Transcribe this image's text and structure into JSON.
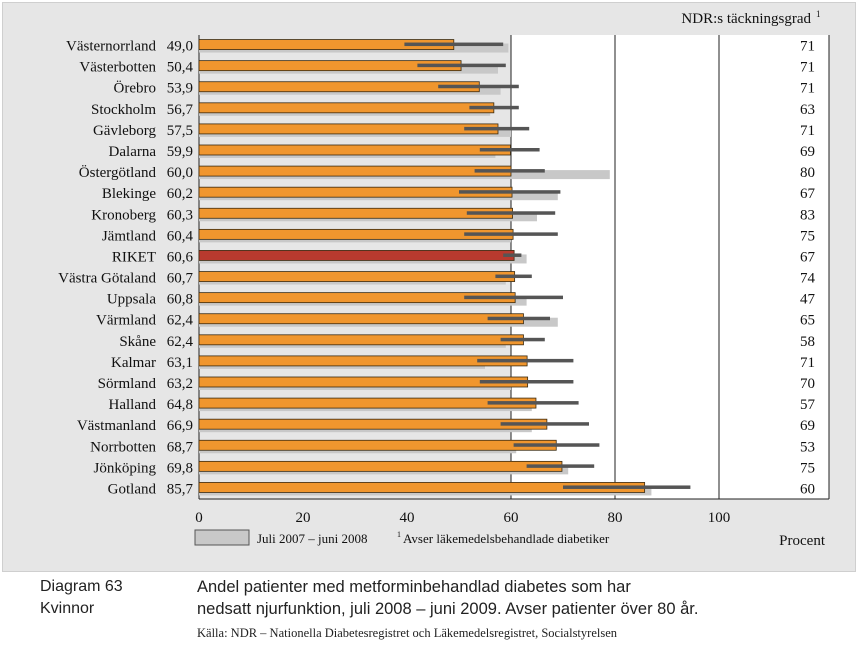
{
  "chart_data": {
    "type": "bar",
    "orientation": "horizontal",
    "title": "NDR:s täckningsgrad",
    "title_footnote": "1",
    "categories": [
      "Västernorrland",
      "Västerbotten",
      "Örebro",
      "Stockholm",
      "Gävleborg",
      "Dalarna",
      "Östergötland",
      "Blekinge",
      "Kronoberg",
      "Jämtland",
      "RIKET",
      "Västra Götaland",
      "Uppsala",
      "Värmland",
      "Skåne",
      "Kalmar",
      "Sörmland",
      "Halland",
      "Västmanland",
      "Norrbotten",
      "Jönköping",
      "Gotland"
    ],
    "value_labels": [
      "49,0",
      "50,4",
      "53,9",
      "56,7",
      "57,5",
      "59,9",
      "60,0",
      "60,2",
      "60,3",
      "60,4",
      "60,6",
      "60,7",
      "60,8",
      "62,4",
      "62,4",
      "63,1",
      "63,2",
      "64,8",
      "66,9",
      "68,7",
      "69,8",
      "85,7"
    ],
    "series": [
      {
        "name": "Juli 2008 – juni 2009",
        "color": "#f0962e",
        "values": [
          49.0,
          50.4,
          53.9,
          56.7,
          57.5,
          59.9,
          60.0,
          60.2,
          60.3,
          60.4,
          60.6,
          60.7,
          60.8,
          62.4,
          62.4,
          63.1,
          63.2,
          64.8,
          66.9,
          68.7,
          69.8,
          85.7
        ]
      },
      {
        "name": "Juli 2007 – juni 2008",
        "color": "#c8c8c8",
        "values": [
          59.5,
          57.5,
          58,
          56,
          60,
          57,
          79,
          69,
          65,
          60,
          63,
          59,
          63,
          69,
          59,
          55,
          60,
          64,
          64,
          61,
          71,
          87
        ]
      }
    ],
    "intervals": [
      [
        39.5,
        58.5
      ],
      [
        42,
        59
      ],
      [
        46,
        61.5
      ],
      [
        52,
        61.5
      ],
      [
        51,
        63.5
      ],
      [
        54,
        65.5
      ],
      [
        53,
        66.5
      ],
      [
        50,
        69.5
      ],
      [
        51.5,
        68.5
      ],
      [
        51,
        69
      ],
      [
        58.5,
        62
      ],
      [
        57,
        64
      ],
      [
        51,
        70
      ],
      [
        55.5,
        67.5
      ],
      [
        58,
        66.5
      ],
      [
        53.5,
        72
      ],
      [
        54,
        72
      ],
      [
        55.5,
        73
      ],
      [
        58,
        75
      ],
      [
        60.5,
        77
      ],
      [
        63,
        76
      ],
      [
        70,
        94.5
      ]
    ],
    "highlight_category": "RIKET",
    "highlight_color": "#b83a2e",
    "coverage": [
      "71",
      "71",
      "71",
      "63",
      "71",
      "69",
      "80",
      "67",
      "83",
      "75",
      "67",
      "74",
      "47",
      "65",
      "58",
      "71",
      "70",
      "57",
      "69",
      "53",
      "75",
      "60"
    ],
    "xlim": [
      0,
      100
    ],
    "xticks": [
      "0",
      "20",
      "40",
      "60",
      "80",
      "100"
    ],
    "xlabel": "Procent",
    "gridlines": [
      60,
      80,
      100
    ],
    "legend": {
      "prev_label": "Juli 2007 – juni 2008",
      "footnote_mark": "1",
      "footnote_text": "Avser läkemedelsbehandlade diabetiker"
    }
  },
  "caption": {
    "label_line1": "Diagram 63",
    "label_line2": "Kvinnor",
    "title_line1": "Andel patienter med metforminbehandlad diabetes som har",
    "title_line2": "nedsatt njurfunktion, juli 2008 – juni 2009. Avser patienter över 80 år.",
    "source": "Källa: NDR – Nationella Diabetesregistret och Läkemedelsregistret, Socialstyrelsen"
  }
}
